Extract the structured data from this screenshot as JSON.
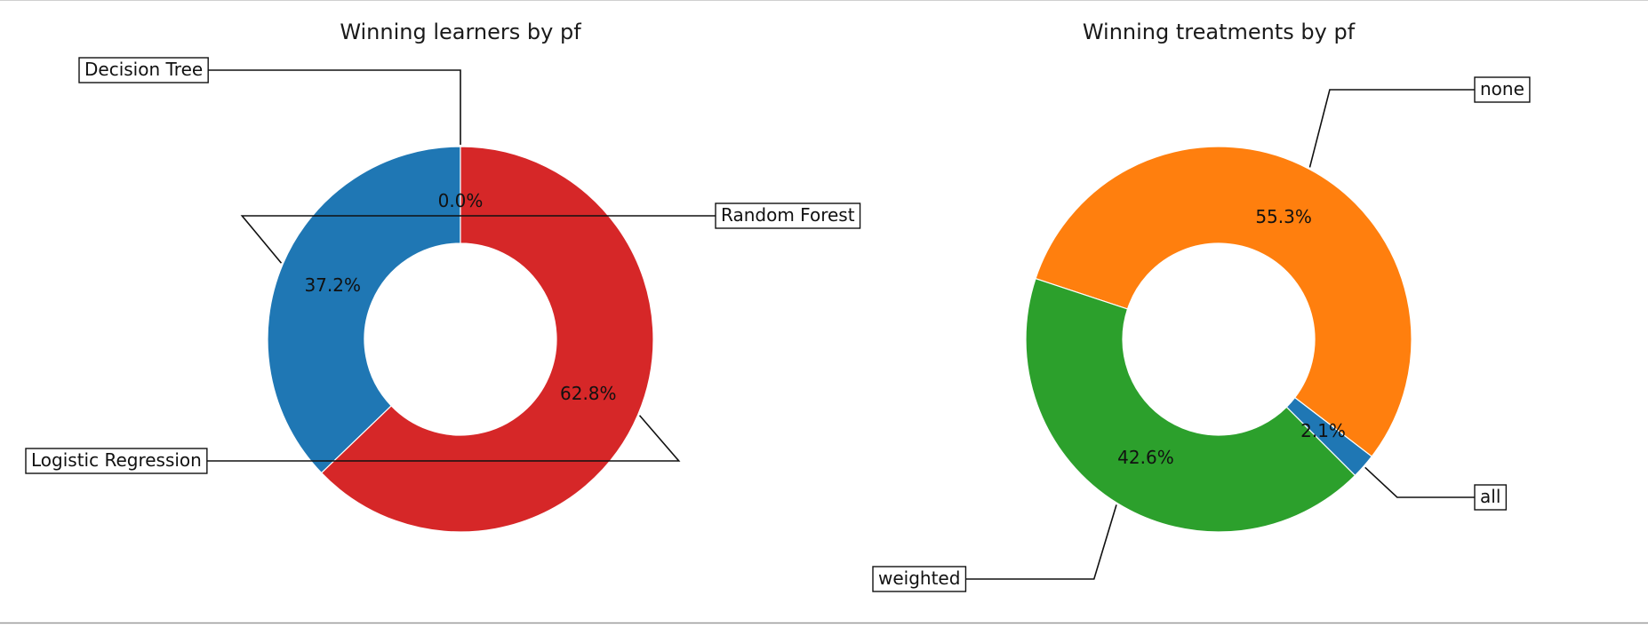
{
  "chart_data": [
    {
      "type": "pie",
      "donut": true,
      "title": "Winning learners by pf",
      "slices": [
        {
          "label": "Random Forest",
          "value": 37.2,
          "pct_label": "37.2%",
          "color": "#1f77b4"
        },
        {
          "label": "Logistic Regression",
          "value": 62.8,
          "pct_label": "62.8%",
          "color": "#d62728"
        },
        {
          "label": "Decision Tree",
          "value": 0.0,
          "pct_label": "0.0%",
          "color": "#2ca02c"
        }
      ]
    },
    {
      "type": "pie",
      "donut": true,
      "title": "Winning treatments by pf",
      "slices": [
        {
          "label": "all",
          "value": 2.1,
          "pct_label": "2.1%",
          "color": "#1f77b4"
        },
        {
          "label": "none",
          "value": 55.3,
          "pct_label": "55.3%",
          "color": "#ff7f0e"
        },
        {
          "label": "weighted",
          "value": 42.6,
          "pct_label": "42.6%",
          "color": "#2ca02c"
        }
      ]
    }
  ]
}
